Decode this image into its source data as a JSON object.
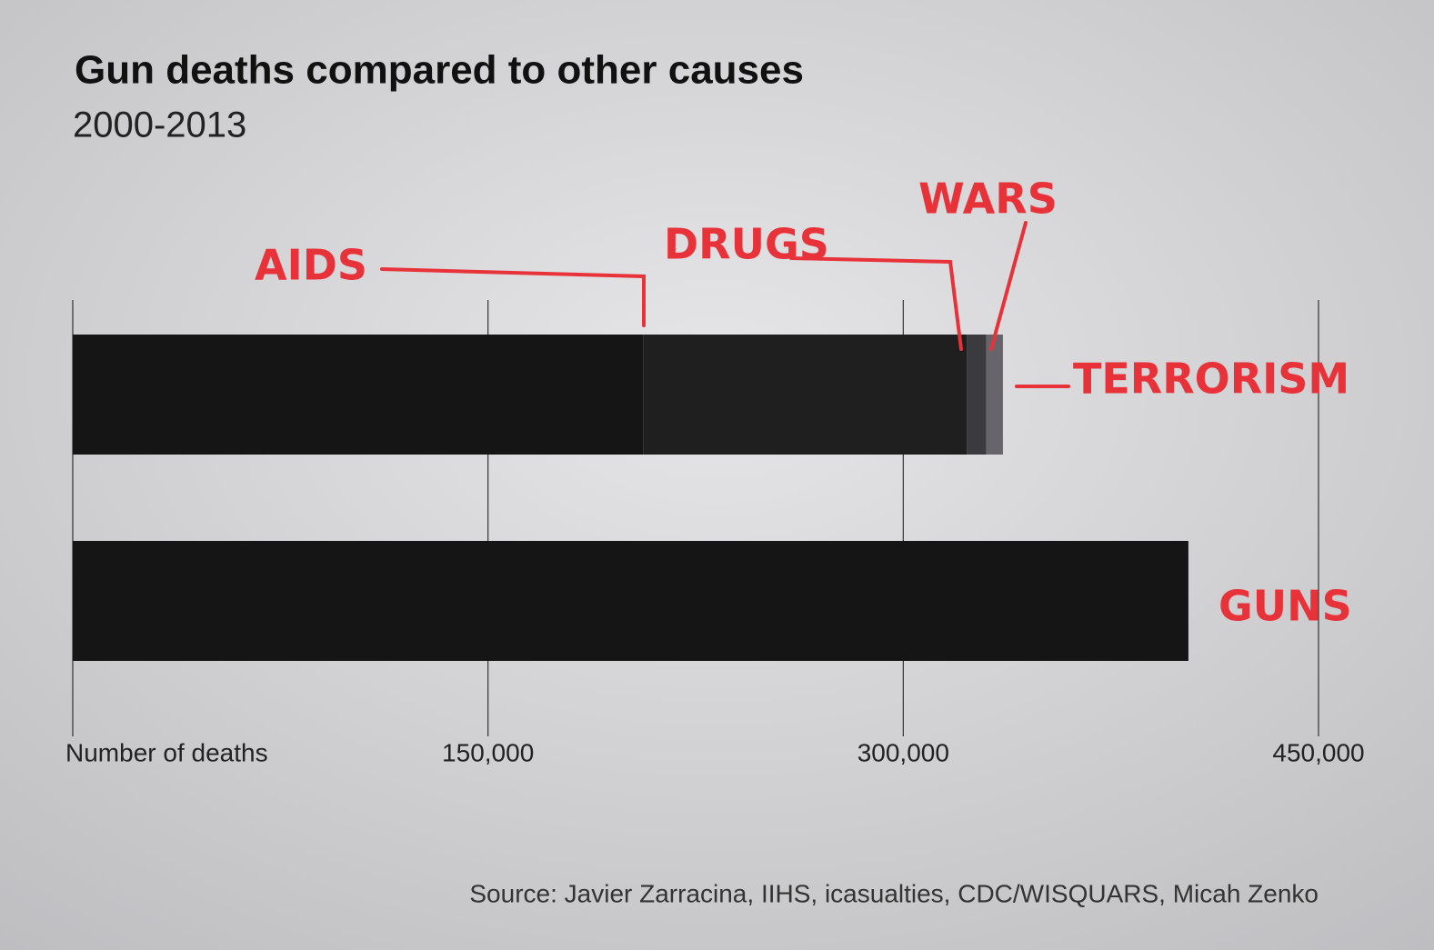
{
  "chart_data": {
    "type": "stacked-bar-horizontal",
    "title": "Gun deaths compared to other causes",
    "subtitle": "2000-2013",
    "source": "Source: Javier Zarracina, IIHS, icasualties, CDC/WISQUARS, Micah Zenko",
    "categories": [
      null,
      null
    ],
    "series": [
      {
        "name": "AIDS",
        "color": "#151515",
        "values": [
          206000,
          null
        ]
      },
      {
        "name": "DRUGS",
        "color": "#1f1f1f",
        "values": [
          117000,
          null
        ]
      },
      {
        "name": "WARS",
        "color": "#3b3a3e",
        "values": [
          7000,
          null
        ]
      },
      {
        "name": "TERRORISM",
        "color": "#67656b",
        "values": [
          6000,
          null
        ]
      },
      {
        "name": "GUNS",
        "color": "#151515",
        "values": [
          null,
          403000
        ]
      }
    ],
    "annotation_color": "#e8323a",
    "xlim": [
      0,
      450000
    ],
    "xticks": [
      {
        "value": 0,
        "label": "Number of deaths"
      },
      {
        "value": 150000,
        "label": "150,000"
      },
      {
        "value": 300000,
        "label": "300,000"
      },
      {
        "value": 450000,
        "label": "450,000"
      }
    ],
    "grid": true
  }
}
